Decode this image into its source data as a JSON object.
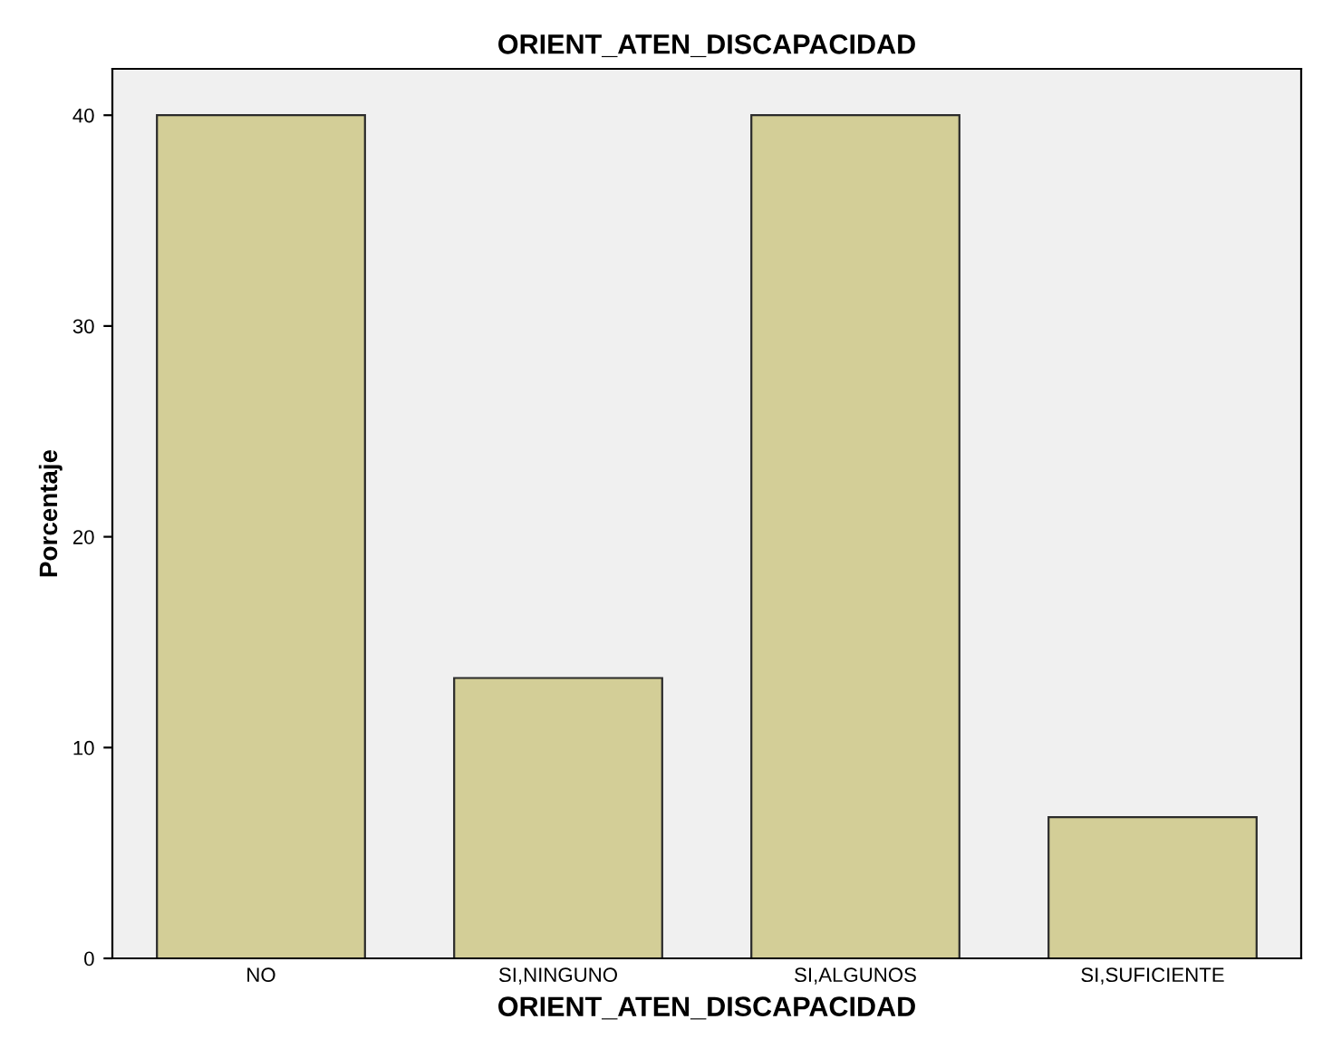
{
  "chart_data": {
    "type": "bar",
    "title": "ORIENT_ATEN_DISCAPACIDAD",
    "xlabel": "ORIENT_ATEN_DISCAPACIDAD",
    "ylabel": "Porcentaje",
    "categories": [
      "NO",
      "SI,NINGUNO",
      "SI,ALGUNOS",
      "SI,SUFICIENTE"
    ],
    "values": [
      40,
      13.3,
      40,
      6.7
    ],
    "color": "#d3ce97",
    "ylim": [
      0,
      42.2
    ],
    "yticks": [
      0,
      10,
      20,
      30,
      40
    ],
    "grid": false,
    "legend": false
  }
}
